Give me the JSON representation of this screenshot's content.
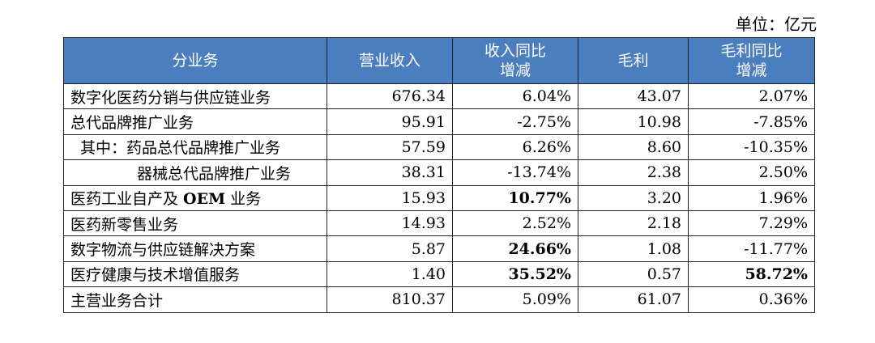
{
  "unit_label": "单位：亿元",
  "table": {
    "header": [
      "分业务",
      "营业收入",
      "收入同比\n增减",
      "毛利",
      "毛利同比\n增减"
    ],
    "rows": [
      [
        "数字化医药分销与供应链业务",
        "676.34",
        "6.04%",
        "43.07",
        "2.07%"
      ],
      [
        "总代品牌推广业务",
        "95.91",
        "-2.75%",
        "10.98",
        "-7.85%"
      ],
      [
        "其中：药品总代品牌推广业务",
        "57.59",
        "6.26%",
        "8.60",
        "-10.35%"
      ],
      [
        "器械总代品牌推广业务",
        "38.31",
        "-13.74%",
        "2.38",
        "2.50%"
      ],
      [
        [
          "医药工业自产及 ",
          "OEM",
          " 业务"
        ],
        "15.93",
        "10.77%",
        "3.20",
        "1.96%"
      ],
      [
        "医药新零售业务",
        "14.93",
        "2.52%",
        "2.18",
        "7.29%"
      ],
      [
        "数字物流与供应链解决方案",
        "5.87",
        "24.66%",
        "1.08",
        "-11.77%"
      ],
      [
        "医疗健康与技术增值服务",
        "1.40",
        "35.52%",
        "0.57",
        "58.72%"
      ],
      [
        "主营业务合计",
        "810.37",
        "5.09%",
        "61.07",
        "0.36%"
      ]
    ],
    "bold_cells": [
      [
        4,
        2
      ],
      [
        6,
        2
      ],
      [
        7,
        2
      ],
      [
        7,
        4
      ]
    ]
  }
}
